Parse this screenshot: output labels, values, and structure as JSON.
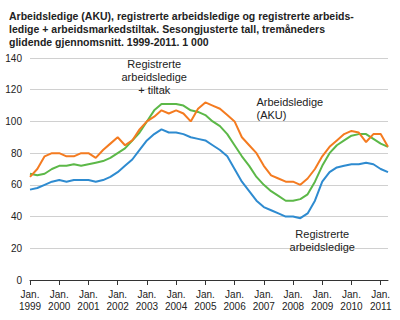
{
  "chart_data": {
    "type": "line",
    "title": "Arbeidsledige (AKU), registrerte arbeidsledige og registrerte arbeids-\nledige + arbeidsmarkedstiltak. Sesongjusterte tall, tremåneders\nglidende gjennomsnitt. 1999-2011. 1 000",
    "categories": [
      "Jan. 1999",
      null,
      null,
      null,
      "Jan. 2000",
      null,
      null,
      null,
      "Jan. 2001",
      null,
      null,
      null,
      "Jan. 2002",
      null,
      null,
      null,
      "Jan. 2003",
      null,
      null,
      null,
      "Jan. 2004",
      null,
      null,
      null,
      "Jan. 2005",
      null,
      null,
      null,
      "Jan. 2006",
      null,
      null,
      null,
      "Jan. 2007",
      null,
      null,
      null,
      "Jan. 2008",
      null,
      null,
      null,
      "Jan. 2009",
      null,
      null,
      null,
      "Jan. 2010",
      null,
      null,
      null,
      "Jan. 2011",
      null
    ],
    "series": [
      {
        "name": "Registrerte\narbeidsledige\n+ tiltak",
        "color": "#5cb848",
        "values": [
          67,
          66,
          67,
          70,
          72,
          72,
          73,
          72,
          73,
          74,
          75,
          77,
          80,
          83,
          88,
          93,
          100,
          107,
          111,
          111,
          111,
          110,
          107,
          106,
          104,
          100,
          97,
          92,
          85,
          78,
          72,
          65,
          60,
          56,
          53,
          50,
          50,
          51,
          54,
          62,
          72,
          80,
          85,
          88,
          91,
          92,
          92,
          89,
          86,
          84
        ]
      },
      {
        "name": "Arbeidsledige\n(AKU)",
        "color": "#f47b20",
        "values": [
          65,
          70,
          78,
          80,
          80,
          78,
          78,
          80,
          80,
          77,
          82,
          86,
          90,
          85,
          88,
          95,
          100,
          103,
          107,
          105,
          107,
          105,
          100,
          108,
          112,
          110,
          108,
          104,
          100,
          90,
          85,
          80,
          72,
          66,
          64,
          62,
          62,
          60,
          64,
          70,
          78,
          84,
          88,
          92,
          94,
          93,
          87,
          92,
          92,
          84
        ]
      },
      {
        "name": "Registrerte\narbeidsledige",
        "color": "#2e8bd0",
        "values": [
          57,
          58,
          60,
          62,
          63,
          62,
          63,
          63,
          63,
          62,
          63,
          65,
          68,
          72,
          76,
          82,
          88,
          92,
          95,
          93,
          93,
          92,
          90,
          89,
          88,
          85,
          82,
          78,
          70,
          62,
          56,
          50,
          46,
          44,
          42,
          40,
          40,
          39,
          42,
          50,
          62,
          68,
          71,
          72,
          73,
          73,
          74,
          73,
          70,
          68
        ]
      }
    ],
    "ylim": [
      0,
      140
    ],
    "yticks": [
      0,
      20,
      40,
      60,
      80,
      100,
      120,
      140
    ],
    "grid": true
  }
}
